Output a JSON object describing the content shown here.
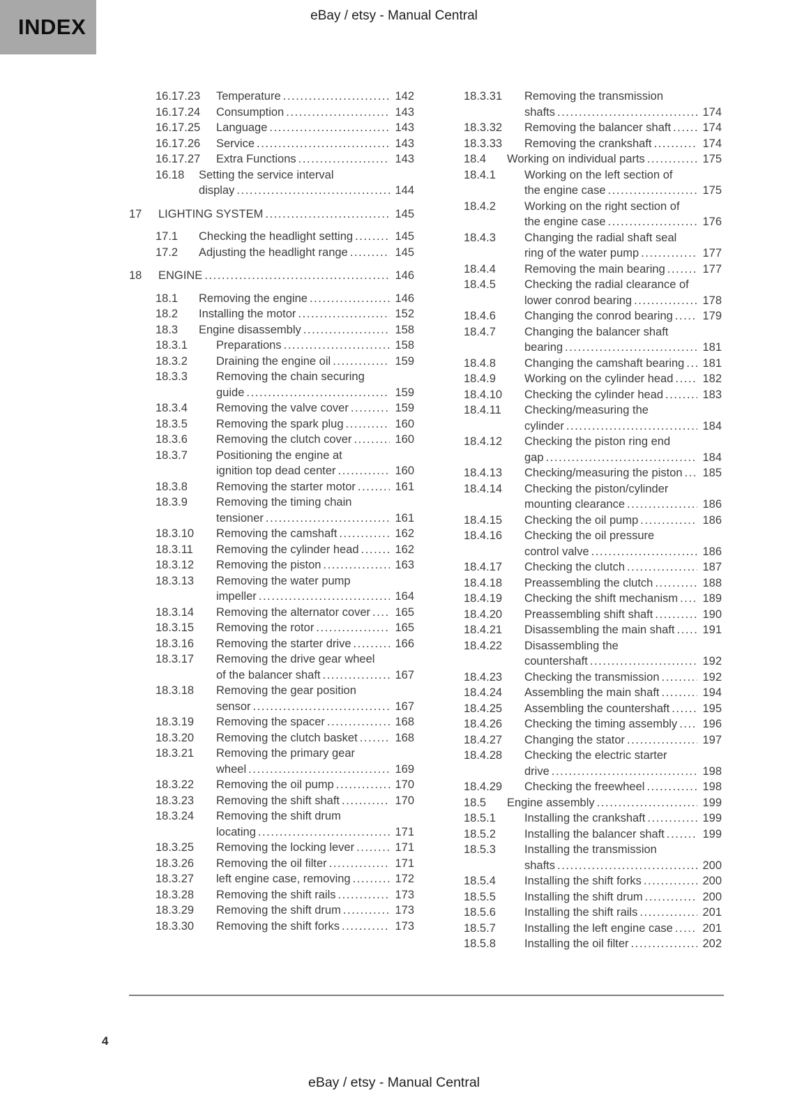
{
  "header": {
    "index_label": "INDEX",
    "title": "eBay / etsy - Manual Central"
  },
  "footer": {
    "title": "eBay / etsy - Manual Central",
    "page_number": "4"
  },
  "colors": {
    "index_box_bg": "#a8a8a8",
    "body_text": "#3c3c3c",
    "page_bg": "#ffffff"
  },
  "toc": {
    "columns": [
      {
        "entries": [
          {
            "num": "16.17.23",
            "level": 3,
            "lines": [
              "Temperature"
            ],
            "page": "142"
          },
          {
            "num": "16.17.24",
            "level": 3,
            "lines": [
              "Consumption"
            ],
            "page": "143"
          },
          {
            "num": "16.17.25",
            "level": 3,
            "lines": [
              "Language"
            ],
            "page": "143"
          },
          {
            "num": "16.17.26",
            "level": 3,
            "lines": [
              "Service"
            ],
            "page": "143"
          },
          {
            "num": "16.17.27",
            "level": 3,
            "lines": [
              "Extra Functions"
            ],
            "page": "143"
          },
          {
            "num": "16.18",
            "level": 2,
            "lines": [
              "Setting the service interval",
              "display"
            ],
            "page": "144"
          },
          {
            "num": "17",
            "level": 1,
            "lines": [
              "LIGHTING SYSTEM"
            ],
            "page": "145"
          },
          {
            "num": "17.1",
            "level": 2,
            "lines": [
              "Checking the headlight setting"
            ],
            "page": "145"
          },
          {
            "num": "17.2",
            "level": 2,
            "lines": [
              "Adjusting the headlight range"
            ],
            "page": "145"
          },
          {
            "num": "18",
            "level": 1,
            "lines": [
              "ENGINE"
            ],
            "page": "146"
          },
          {
            "num": "18.1",
            "level": 2,
            "lines": [
              "Removing the engine"
            ],
            "page": "146"
          },
          {
            "num": "18.2",
            "level": 2,
            "lines": [
              "Installing the motor"
            ],
            "page": "152"
          },
          {
            "num": "18.3",
            "level": 2,
            "lines": [
              "Engine disassembly"
            ],
            "page": "158"
          },
          {
            "num": "18.3.1",
            "level": 3,
            "lines": [
              "Preparations"
            ],
            "page": "158"
          },
          {
            "num": "18.3.2",
            "level": 3,
            "lines": [
              "Draining the engine oil"
            ],
            "page": "159"
          },
          {
            "num": "18.3.3",
            "level": 3,
            "lines": [
              "Removing the chain securing",
              "guide"
            ],
            "page": "159"
          },
          {
            "num": "18.3.4",
            "level": 3,
            "lines": [
              "Removing the valve cover"
            ],
            "page": "159"
          },
          {
            "num": "18.3.5",
            "level": 3,
            "lines": [
              "Removing the spark plug"
            ],
            "page": "160"
          },
          {
            "num": "18.3.6",
            "level": 3,
            "lines": [
              "Removing the clutch cover"
            ],
            "page": "160"
          },
          {
            "num": "18.3.7",
            "level": 3,
            "lines": [
              "Positioning the engine at",
              "ignition top dead center"
            ],
            "page": "160"
          },
          {
            "num": "18.3.8",
            "level": 3,
            "lines": [
              "Removing the starter motor"
            ],
            "page": "161"
          },
          {
            "num": "18.3.9",
            "level": 3,
            "lines": [
              "Removing the timing chain",
              "tensioner"
            ],
            "page": "161"
          },
          {
            "num": "18.3.10",
            "level": 3,
            "lines": [
              "Removing the camshaft"
            ],
            "page": "162"
          },
          {
            "num": "18.3.11",
            "level": 3,
            "lines": [
              "Removing the cylinder head"
            ],
            "page": "162"
          },
          {
            "num": "18.3.12",
            "level": 3,
            "lines": [
              "Removing the piston"
            ],
            "page": "163"
          },
          {
            "num": "18.3.13",
            "level": 3,
            "lines": [
              "Removing the water pump",
              "impeller"
            ],
            "page": "164"
          },
          {
            "num": "18.3.14",
            "level": 3,
            "lines": [
              "Removing the alternator cover"
            ],
            "page": "165"
          },
          {
            "num": "18.3.15",
            "level": 3,
            "lines": [
              "Removing the rotor"
            ],
            "page": "165"
          },
          {
            "num": "18.3.16",
            "level": 3,
            "lines": [
              "Removing the starter drive"
            ],
            "page": "166"
          },
          {
            "num": "18.3.17",
            "level": 3,
            "lines": [
              "Removing the drive gear wheel",
              "of the balancer shaft"
            ],
            "page": "167"
          },
          {
            "num": "18.3.18",
            "level": 3,
            "lines": [
              "Removing the gear position",
              "sensor"
            ],
            "page": "167"
          },
          {
            "num": "18.3.19",
            "level": 3,
            "lines": [
              "Removing the spacer"
            ],
            "page": "168"
          },
          {
            "num": "18.3.20",
            "level": 3,
            "lines": [
              "Removing the clutch basket"
            ],
            "page": "168"
          },
          {
            "num": "18.3.21",
            "level": 3,
            "lines": [
              "Removing the primary gear",
              "wheel"
            ],
            "page": "169"
          },
          {
            "num": "18.3.22",
            "level": 3,
            "lines": [
              "Removing the oil pump"
            ],
            "page": "170"
          },
          {
            "num": "18.3.23",
            "level": 3,
            "lines": [
              "Removing the shift shaft"
            ],
            "page": "170"
          },
          {
            "num": "18.3.24",
            "level": 3,
            "lines": [
              "Removing the shift drum",
              "locating"
            ],
            "page": "171"
          },
          {
            "num": "18.3.25",
            "level": 3,
            "lines": [
              "Removing the locking lever"
            ],
            "page": "171"
          },
          {
            "num": "18.3.26",
            "level": 3,
            "lines": [
              "Removing the oil filter"
            ],
            "page": "171"
          },
          {
            "num": "18.3.27",
            "level": 3,
            "lines": [
              "left engine case, removing"
            ],
            "page": "172"
          },
          {
            "num": "18.3.28",
            "level": 3,
            "lines": [
              "Removing the shift rails"
            ],
            "page": "173"
          },
          {
            "num": "18.3.29",
            "level": 3,
            "lines": [
              "Removing the shift drum"
            ],
            "page": "173"
          },
          {
            "num": "18.3.30",
            "level": 3,
            "lines": [
              "Removing the shift forks"
            ],
            "page": "173"
          }
        ]
      },
      {
        "entries": [
          {
            "num": "18.3.31",
            "level": 3,
            "lines": [
              "Removing the transmission",
              "shafts"
            ],
            "page": "174"
          },
          {
            "num": "18.3.32",
            "level": 3,
            "lines": [
              "Removing the balancer shaft"
            ],
            "page": "174"
          },
          {
            "num": "18.3.33",
            "level": 3,
            "lines": [
              "Removing the crankshaft"
            ],
            "page": "174"
          },
          {
            "num": "18.4",
            "level": 2,
            "lines": [
              "Working on individual parts"
            ],
            "page": "175"
          },
          {
            "num": "18.4.1",
            "level": 3,
            "lines": [
              "Working on the left section of",
              "the engine case"
            ],
            "page": "175"
          },
          {
            "num": "18.4.2",
            "level": 3,
            "lines": [
              "Working on the right section of",
              "the engine case"
            ],
            "page": "176"
          },
          {
            "num": "18.4.3",
            "level": 3,
            "lines": [
              "Changing the radial shaft seal",
              "ring of the water pump"
            ],
            "page": "177"
          },
          {
            "num": "18.4.4",
            "level": 3,
            "lines": [
              "Removing the main bearing"
            ],
            "page": "177"
          },
          {
            "num": "18.4.5",
            "level": 3,
            "lines": [
              "Checking the radial clearance of",
              "lower conrod bearing"
            ],
            "page": "178"
          },
          {
            "num": "18.4.6",
            "level": 3,
            "lines": [
              "Changing the conrod bearing"
            ],
            "page": "179"
          },
          {
            "num": "18.4.7",
            "level": 3,
            "lines": [
              "Changing the balancer shaft",
              "bearing"
            ],
            "page": "181"
          },
          {
            "num": "18.4.8",
            "level": 3,
            "lines": [
              "Changing the camshaft bearing"
            ],
            "page": "181"
          },
          {
            "num": "18.4.9",
            "level": 3,
            "lines": [
              "Working on the cylinder head"
            ],
            "page": "182"
          },
          {
            "num": "18.4.10",
            "level": 3,
            "lines": [
              "Checking the cylinder head"
            ],
            "page": "183"
          },
          {
            "num": "18.4.11",
            "level": 3,
            "lines": [
              "Checking/measuring the",
              "cylinder"
            ],
            "page": "184"
          },
          {
            "num": "18.4.12",
            "level": 3,
            "lines": [
              "Checking the piston ring end",
              "gap"
            ],
            "page": "184"
          },
          {
            "num": "18.4.13",
            "level": 3,
            "lines": [
              "Checking/measuring the piston"
            ],
            "page": "185"
          },
          {
            "num": "18.4.14",
            "level": 3,
            "lines": [
              "Checking the piston/cylinder",
              "mounting clearance"
            ],
            "page": "186"
          },
          {
            "num": "18.4.15",
            "level": 3,
            "lines": [
              "Checking the oil pump"
            ],
            "page": "186"
          },
          {
            "num": "18.4.16",
            "level": 3,
            "lines": [
              "Checking the oil pressure",
              "control valve"
            ],
            "page": "186"
          },
          {
            "num": "18.4.17",
            "level": 3,
            "lines": [
              "Checking the clutch"
            ],
            "page": "187"
          },
          {
            "num": "18.4.18",
            "level": 3,
            "lines": [
              "Preassembling the clutch"
            ],
            "page": "188"
          },
          {
            "num": "18.4.19",
            "level": 3,
            "lines": [
              "Checking the shift mechanism"
            ],
            "page": "189"
          },
          {
            "num": "18.4.20",
            "level": 3,
            "lines": [
              "Preassembling shift shaft"
            ],
            "page": "190"
          },
          {
            "num": "18.4.21",
            "level": 3,
            "lines": [
              "Disassembling the main shaft"
            ],
            "page": "191"
          },
          {
            "num": "18.4.22",
            "level": 3,
            "lines": [
              "Disassembling the",
              "countershaft"
            ],
            "page": "192"
          },
          {
            "num": "18.4.23",
            "level": 3,
            "lines": [
              "Checking the transmission"
            ],
            "page": "192"
          },
          {
            "num": "18.4.24",
            "level": 3,
            "lines": [
              "Assembling the main shaft"
            ],
            "page": "194"
          },
          {
            "num": "18.4.25",
            "level": 3,
            "lines": [
              "Assembling the countershaft"
            ],
            "page": "195"
          },
          {
            "num": "18.4.26",
            "level": 3,
            "lines": [
              "Checking the timing assembly"
            ],
            "page": "196"
          },
          {
            "num": "18.4.27",
            "level": 3,
            "lines": [
              "Changing the stator"
            ],
            "page": "197"
          },
          {
            "num": "18.4.28",
            "level": 3,
            "lines": [
              "Checking the electric starter",
              "drive"
            ],
            "page": "198"
          },
          {
            "num": "18.4.29",
            "level": 3,
            "lines": [
              "Checking the freewheel"
            ],
            "page": "198"
          },
          {
            "num": "18.5",
            "level": 2,
            "lines": [
              "Engine assembly"
            ],
            "page": "199"
          },
          {
            "num": "18.5.1",
            "level": 3,
            "lines": [
              "Installing the crankshaft"
            ],
            "page": "199"
          },
          {
            "num": "18.5.2",
            "level": 3,
            "lines": [
              "Installing the balancer shaft"
            ],
            "page": "199"
          },
          {
            "num": "18.5.3",
            "level": 3,
            "lines": [
              "Installing the transmission",
              "shafts"
            ],
            "page": "200"
          },
          {
            "num": "18.5.4",
            "level": 3,
            "lines": [
              "Installing the shift forks"
            ],
            "page": "200"
          },
          {
            "num": "18.5.5",
            "level": 3,
            "lines": [
              "Installing the shift drum"
            ],
            "page": "200"
          },
          {
            "num": "18.5.6",
            "level": 3,
            "lines": [
              "Installing the shift rails"
            ],
            "page": "201"
          },
          {
            "num": "18.5.7",
            "level": 3,
            "lines": [
              "Installing the left engine case"
            ],
            "page": "201"
          },
          {
            "num": "18.5.8",
            "level": 3,
            "lines": [
              "Installing the oil filter"
            ],
            "page": "202"
          }
        ]
      }
    ]
  }
}
